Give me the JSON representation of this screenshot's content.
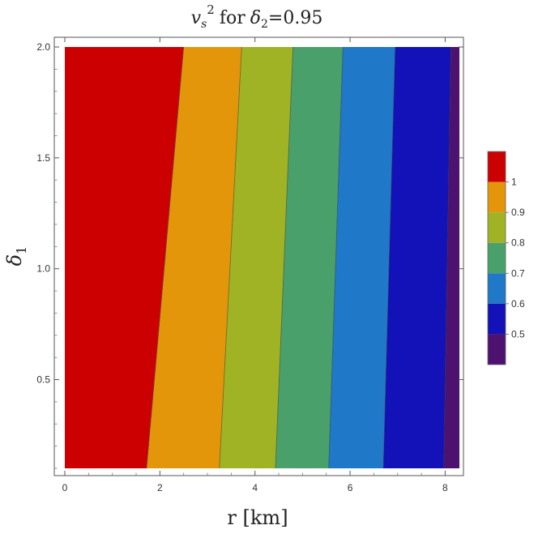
{
  "chart_data": {
    "type": "contour",
    "title": {
      "var": "v",
      "var_sub": "s",
      "var_sup": "2",
      "middle": "for",
      "param": "δ",
      "param_sub": "2",
      "param_value": "=0.95"
    },
    "xlabel": "r [km]",
    "ylabel": {
      "main": "δ",
      "sub": "1"
    },
    "xlim": [
      0,
      8.3
    ],
    "ylim": [
      0.1,
      2.0
    ],
    "x_ticks": [
      0,
      2,
      4,
      6,
      8
    ],
    "y_ticks": [
      0.5,
      1.0,
      1.5,
      2.0
    ],
    "x_tick_labels": [
      "0",
      "2",
      "4",
      "6",
      "8"
    ],
    "y_tick_labels": [
      "0.5",
      "1.0",
      "1.5",
      "2.0"
    ],
    "contour_boundaries": [
      {
        "level": 1.0,
        "x_at_ymin": 1.72,
        "x_at_ymax": 2.5
      },
      {
        "level": 0.9,
        "x_at_ymin": 3.25,
        "x_at_ymax": 3.72
      },
      {
        "level": 0.8,
        "x_at_ymin": 4.43,
        "x_at_ymax": 4.8
      },
      {
        "level": 0.7,
        "x_at_ymin": 5.55,
        "x_at_ymax": 5.85
      },
      {
        "level": 0.6,
        "x_at_ymin": 6.7,
        "x_at_ymax": 6.95
      },
      {
        "level": 0.5,
        "x_at_ymin": 7.97,
        "x_at_ymax": 8.12
      }
    ],
    "bands": [
      {
        "range": "> 1",
        "color": "#cc0000"
      },
      {
        "range": "0.9–1",
        "color": "#e3960a"
      },
      {
        "range": "0.8–0.9",
        "color": "#9fb324"
      },
      {
        "range": "0.7–0.8",
        "color": "#4aa06a"
      },
      {
        "range": "0.6–0.7",
        "color": "#1f78c8"
      },
      {
        "range": "0.5–0.6",
        "color": "#1212b8"
      },
      {
        "range": "< 0.5",
        "color": "#4d1270"
      }
    ],
    "legend": {
      "placement": "right",
      "labels": [
        "1",
        "0.9",
        "0.8",
        "0.7",
        "0.6",
        "0.5"
      ]
    },
    "grid": false
  }
}
